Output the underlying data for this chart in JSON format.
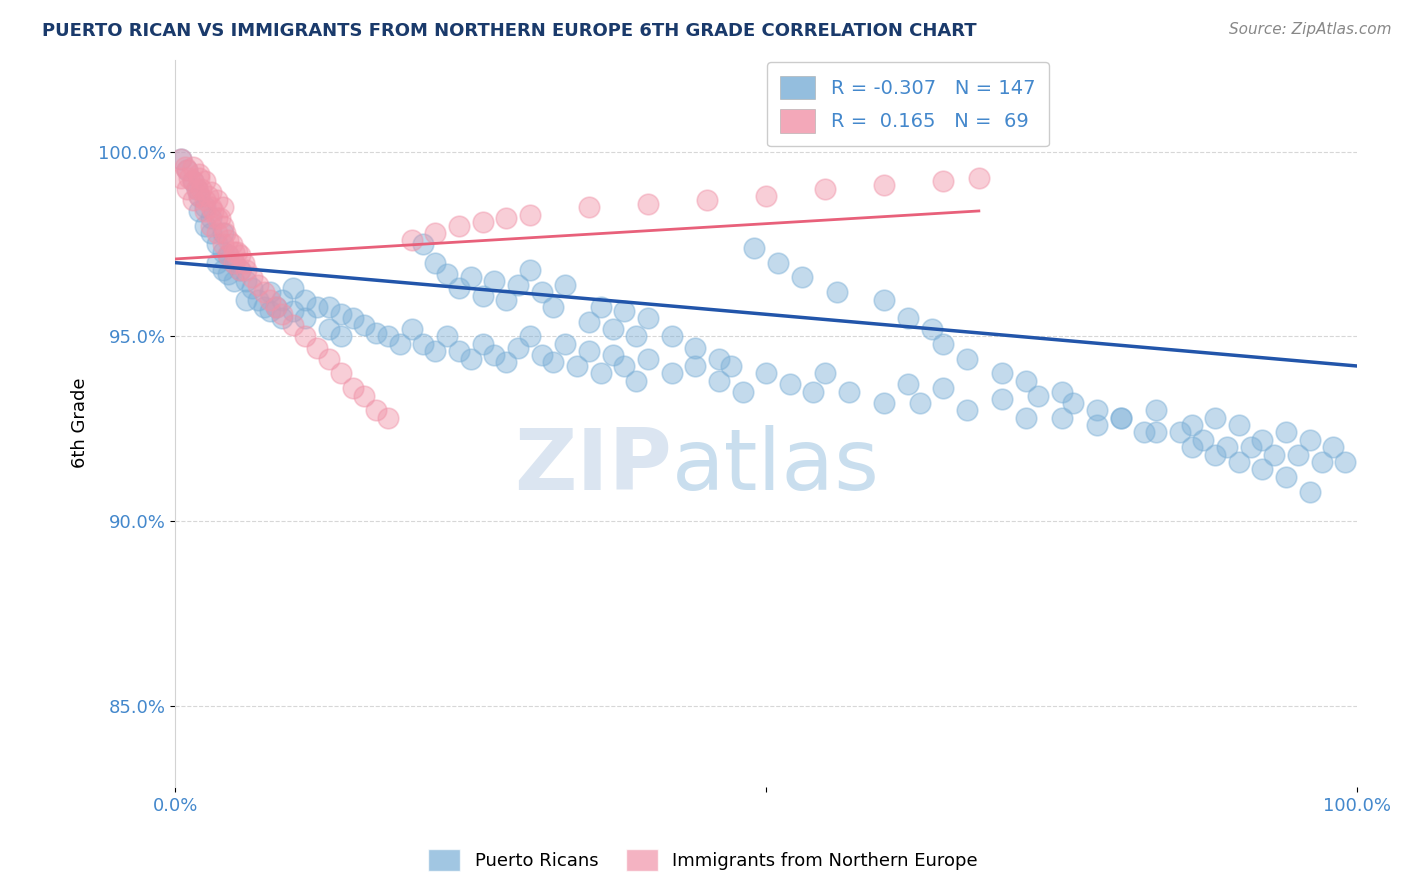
{
  "title": "PUERTO RICAN VS IMMIGRANTS FROM NORTHERN EUROPE 6TH GRADE CORRELATION CHART",
  "source": "Source: ZipAtlas.com",
  "ylabel": "6th Grade",
  "y_ticks": [
    0.85,
    0.9,
    0.95,
    1.0
  ],
  "y_tick_labels": [
    "85.0%",
    "90.0%",
    "95.0%",
    "100.0%"
  ],
  "x_range": [
    0.0,
    1.0
  ],
  "y_range": [
    0.828,
    1.025
  ],
  "blue_R": -0.307,
  "blue_N": 147,
  "pink_R": 0.165,
  "pink_N": 69,
  "blue_color": "#7aaed6",
  "pink_color": "#f093a8",
  "blue_line_color": "#2255AA",
  "pink_line_color": "#e8607a",
  "watermark_zip": "ZIP",
  "watermark_atlas": "atlas",
  "legend_label_blue": "Puerto Ricans",
  "legend_label_pink": "Immigrants from Northern Europe",
  "blue_trend_x0": 0.0,
  "blue_trend_x1": 1.0,
  "blue_trend_y0": 0.97,
  "blue_trend_y1": 0.942,
  "pink_trend_x0": 0.0,
  "pink_trend_x1": 0.68,
  "pink_trend_y0": 0.971,
  "pink_trend_y1": 0.984,
  "blue_x": [
    0.005,
    0.01,
    0.015,
    0.018,
    0.02,
    0.02,
    0.025,
    0.025,
    0.03,
    0.03,
    0.035,
    0.035,
    0.04,
    0.04,
    0.04,
    0.045,
    0.045,
    0.05,
    0.05,
    0.055,
    0.06,
    0.06,
    0.065,
    0.07,
    0.075,
    0.08,
    0.08,
    0.085,
    0.09,
    0.09,
    0.1,
    0.1,
    0.11,
    0.11,
    0.12,
    0.13,
    0.13,
    0.14,
    0.14,
    0.15,
    0.16,
    0.17,
    0.18,
    0.19,
    0.2,
    0.21,
    0.22,
    0.23,
    0.24,
    0.25,
    0.26,
    0.27,
    0.28,
    0.29,
    0.3,
    0.31,
    0.32,
    0.33,
    0.34,
    0.35,
    0.36,
    0.37,
    0.38,
    0.39,
    0.4,
    0.42,
    0.44,
    0.46,
    0.47,
    0.48,
    0.5,
    0.52,
    0.54,
    0.55,
    0.57,
    0.6,
    0.62,
    0.63,
    0.65,
    0.67,
    0.7,
    0.72,
    0.73,
    0.75,
    0.76,
    0.78,
    0.8,
    0.82,
    0.83,
    0.85,
    0.86,
    0.87,
    0.88,
    0.89,
    0.9,
    0.91,
    0.92,
    0.93,
    0.94,
    0.95,
    0.96,
    0.97,
    0.98,
    0.99,
    0.3,
    0.31,
    0.32,
    0.33,
    0.21,
    0.22,
    0.23,
    0.24,
    0.25,
    0.26,
    0.27,
    0.28,
    0.29,
    0.35,
    0.36,
    0.37,
    0.38,
    0.39,
    0.4,
    0.42,
    0.44,
    0.46,
    0.6,
    0.62,
    0.64,
    0.65,
    0.67,
    0.7,
    0.72,
    0.75,
    0.78,
    0.8,
    0.83,
    0.86,
    0.88,
    0.9,
    0.92,
    0.94,
    0.96,
    0.49,
    0.51,
    0.53,
    0.56
  ],
  "blue_y": [
    0.998,
    0.995,
    0.992,
    0.99,
    0.988,
    0.984,
    0.985,
    0.98,
    0.978,
    0.982,
    0.975,
    0.97,
    0.978,
    0.973,
    0.968,
    0.972,
    0.967,
    0.97,
    0.965,
    0.968,
    0.965,
    0.96,
    0.963,
    0.96,
    0.958,
    0.962,
    0.957,
    0.958,
    0.955,
    0.96,
    0.963,
    0.957,
    0.96,
    0.955,
    0.958,
    0.958,
    0.952,
    0.956,
    0.95,
    0.955,
    0.953,
    0.951,
    0.95,
    0.948,
    0.952,
    0.948,
    0.946,
    0.95,
    0.946,
    0.944,
    0.948,
    0.945,
    0.943,
    0.947,
    0.95,
    0.945,
    0.943,
    0.948,
    0.942,
    0.946,
    0.94,
    0.945,
    0.942,
    0.938,
    0.944,
    0.94,
    0.942,
    0.938,
    0.942,
    0.935,
    0.94,
    0.937,
    0.935,
    0.94,
    0.935,
    0.932,
    0.937,
    0.932,
    0.936,
    0.93,
    0.933,
    0.928,
    0.934,
    0.928,
    0.932,
    0.926,
    0.928,
    0.924,
    0.93,
    0.924,
    0.926,
    0.922,
    0.928,
    0.92,
    0.926,
    0.92,
    0.922,
    0.918,
    0.924,
    0.918,
    0.922,
    0.916,
    0.92,
    0.916,
    0.968,
    0.962,
    0.958,
    0.964,
    0.975,
    0.97,
    0.967,
    0.963,
    0.966,
    0.961,
    0.965,
    0.96,
    0.964,
    0.954,
    0.958,
    0.952,
    0.957,
    0.95,
    0.955,
    0.95,
    0.947,
    0.944,
    0.96,
    0.955,
    0.952,
    0.948,
    0.944,
    0.94,
    0.938,
    0.935,
    0.93,
    0.928,
    0.924,
    0.92,
    0.918,
    0.916,
    0.914,
    0.912,
    0.908,
    0.974,
    0.97,
    0.966,
    0.962
  ],
  "pink_x": [
    0.005,
    0.005,
    0.008,
    0.01,
    0.01,
    0.012,
    0.015,
    0.015,
    0.018,
    0.02,
    0.02,
    0.022,
    0.025,
    0.025,
    0.028,
    0.03,
    0.03,
    0.032,
    0.035,
    0.035,
    0.038,
    0.04,
    0.04,
    0.042,
    0.045,
    0.045,
    0.048,
    0.05,
    0.05,
    0.052,
    0.055,
    0.055,
    0.058,
    0.06,
    0.065,
    0.07,
    0.075,
    0.08,
    0.085,
    0.09,
    0.1,
    0.11,
    0.12,
    0.13,
    0.14,
    0.15,
    0.16,
    0.17,
    0.18,
    0.2,
    0.22,
    0.24,
    0.26,
    0.28,
    0.3,
    0.35,
    0.4,
    0.45,
    0.5,
    0.55,
    0.6,
    0.65,
    0.68,
    0.015,
    0.02,
    0.025,
    0.03,
    0.035,
    0.04
  ],
  "pink_y": [
    0.998,
    0.993,
    0.996,
    0.995,
    0.99,
    0.993,
    0.992,
    0.987,
    0.99,
    0.993,
    0.988,
    0.99,
    0.987,
    0.984,
    0.988,
    0.985,
    0.98,
    0.984,
    0.982,
    0.978,
    0.982,
    0.98,
    0.975,
    0.978,
    0.976,
    0.972,
    0.975,
    0.973,
    0.97,
    0.973,
    0.972,
    0.968,
    0.97,
    0.968,
    0.966,
    0.964,
    0.962,
    0.96,
    0.958,
    0.956,
    0.953,
    0.95,
    0.947,
    0.944,
    0.94,
    0.936,
    0.934,
    0.93,
    0.928,
    0.976,
    0.978,
    0.98,
    0.981,
    0.982,
    0.983,
    0.985,
    0.986,
    0.987,
    0.988,
    0.99,
    0.991,
    0.992,
    0.993,
    0.996,
    0.994,
    0.992,
    0.989,
    0.987,
    0.985
  ]
}
